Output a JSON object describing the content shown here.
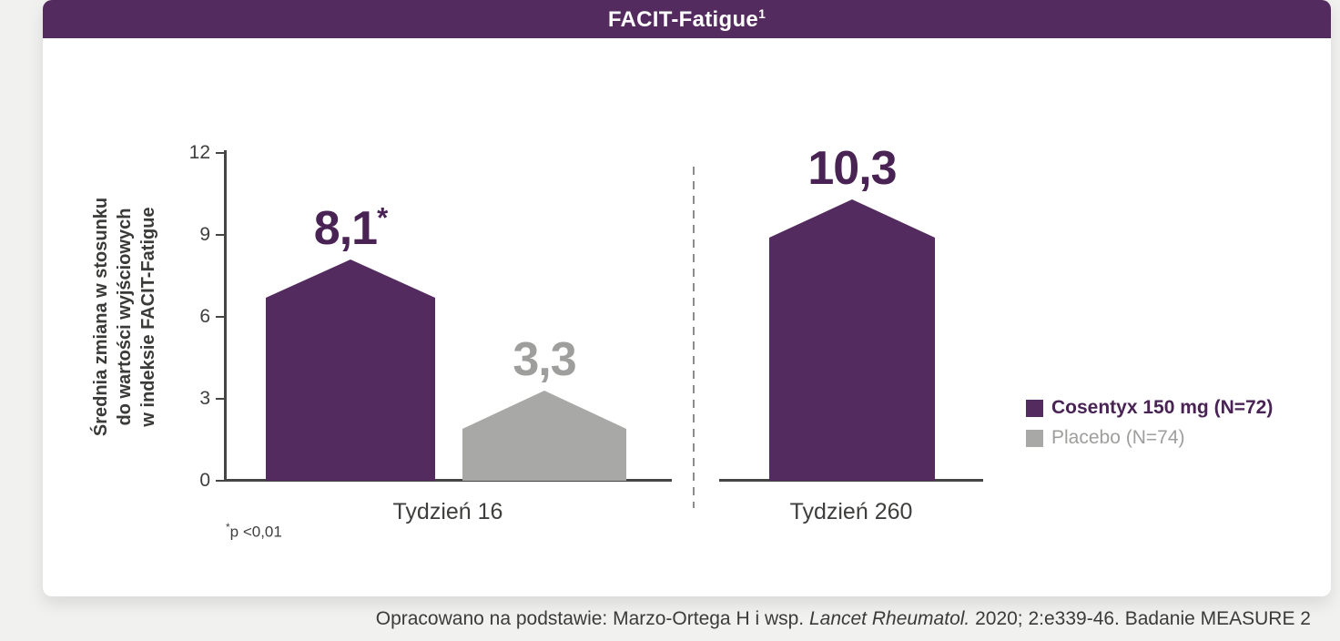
{
  "page": {
    "background": "#f1f1ef"
  },
  "header": {
    "title": "FACIT-Fatigue",
    "title_superscript": "1",
    "background": "#542b5e",
    "text_color": "#ffffff"
  },
  "chart_data": {
    "type": "bar",
    "title": "FACIT-Fatigue¹",
    "ylabel": "Średnia zmiana w stosunku do wartości wyjściowych w indeksie FACIT-Fatigue",
    "ylabel_lines": [
      "Średnia zmiana w stosunku",
      "do wartości wyjściowych",
      "w indeksie FACIT-Fatigue"
    ],
    "ylim": [
      0,
      12
    ],
    "yticks": [
      "0",
      "3",
      "6",
      "9",
      "12"
    ],
    "ytick_values": [
      0,
      3,
      6,
      9,
      12
    ],
    "grid": false,
    "bar_shape": "pentagon-peaked",
    "categories": [
      "Tydzień 16",
      "Tydzień 260"
    ],
    "series": [
      {
        "name": "Cosentyx 150 mg (N=72)",
        "color": "#542b5e",
        "values": [
          8.1,
          10.3
        ]
      },
      {
        "name": "Placebo (N=74)",
        "color": "#a8a8a6",
        "values": [
          3.3,
          null
        ]
      }
    ],
    "groups": [
      {
        "label": "Tydzień 16",
        "bars": [
          {
            "series": "Cosentyx 150 mg (N=72)",
            "value": 8.1,
            "display": "8,1",
            "display_suffix": "*",
            "color": "#542b5e",
            "label_color": "#4a2355"
          },
          {
            "series": "Placebo (N=74)",
            "value": 3.3,
            "display": "3,3",
            "display_suffix": "",
            "color": "#a8a8a6",
            "label_color": "#9e9e9c"
          }
        ]
      },
      {
        "label": "Tydzień 260",
        "bars": [
          {
            "series": "Cosentyx 150 mg (N=72)",
            "value": 10.3,
            "display": "10,3",
            "display_suffix": "",
            "color": "#542b5e",
            "label_color": "#4a2355"
          }
        ]
      }
    ],
    "legend": {
      "position": "right",
      "entries": [
        {
          "label": "Cosentyx 150 mg (N=72)",
          "color": "#542b5e",
          "text_color": "#4a2355",
          "bold": true
        },
        {
          "label": "Placebo (N=74)",
          "color": "#a8a8a6",
          "text_color": "#9e9e9c",
          "bold": false
        }
      ]
    },
    "footnote_star": "*",
    "footnote_text": "p <0,01"
  },
  "footer": {
    "citation_prefix": "Opracowano na podstawie: Marzo-Ortega H i wsp. ",
    "citation_italic": "Lancet Rheumatol.",
    "citation_suffix": " 2020; 2:e339-46. Badanie MEASURE 2"
  }
}
